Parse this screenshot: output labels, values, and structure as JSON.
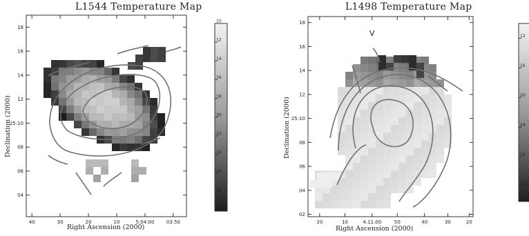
{
  "chart_data": [
    {
      "type": "heatmap",
      "title": "L1544 Temperature Map",
      "xlabel": "Right Ascension (2000)",
      "ylabel": "Declination (2000)",
      "xlim": [
        0,
        8.5
      ],
      "ylim": [
        2.2,
        19
      ],
      "x_ticks": [
        {
          "v": 0.3,
          "label": "40"
        },
        {
          "v": 1.8,
          "label": "30"
        },
        {
          "v": 3.3,
          "label": "20"
        },
        {
          "v": 4.8,
          "label": "10"
        },
        {
          "v": 6.3,
          "label": "5:04:00"
        },
        {
          "v": 7.8,
          "label": "03:50"
        }
      ],
      "y_ticks": [
        {
          "v": 4,
          "label": "04"
        },
        {
          "v": 6,
          "label": "06"
        },
        {
          "v": 8,
          "label": "08"
        },
        {
          "v": 10,
          "label": "25:10"
        },
        {
          "v": 12,
          "label": "12"
        },
        {
          "v": 14,
          "label": "14"
        },
        {
          "v": 16,
          "label": "16"
        },
        {
          "v": 18,
          "label": "18"
        }
      ],
      "colorbar": {
        "ticks": [
          "10",
          "12",
          "14",
          "16",
          "18",
          "20",
          "22",
          "24",
          "26",
          "28",
          "30"
        ]
      },
      "grid": false
    },
    {
      "type": "heatmap",
      "title": "L1498 Temperature Map",
      "xlabel": "Right Ascension (2000)",
      "ylabel": "Declination (2000)",
      "xlim": [
        0,
        8.5
      ],
      "ylim": [
        1.8,
        18.5
      ],
      "x_ticks": [
        {
          "v": 0.6,
          "label": "20"
        },
        {
          "v": 1.9,
          "label": "10"
        },
        {
          "v": 3.3,
          "label": "4:11:00"
        },
        {
          "v": 4.6,
          "label": "50"
        },
        {
          "v": 6.0,
          "label": "40"
        },
        {
          "v": 7.2,
          "label": "30"
        },
        {
          "v": 8.3,
          "label": "20"
        }
      ],
      "y_ticks": [
        {
          "v": 2,
          "label": "02"
        },
        {
          "v": 4,
          "label": "04"
        },
        {
          "v": 6,
          "label": "06"
        },
        {
          "v": 8,
          "label": "08"
        },
        {
          "v": 10,
          "label": "25:10"
        },
        {
          "v": 12,
          "label": "12"
        },
        {
          "v": 14,
          "label": "14"
        },
        {
          "v": 16,
          "label": "16"
        },
        {
          "v": 18,
          "label": "18"
        }
      ],
      "annotation": "V",
      "colorbar": {
        "ticks": [
          "12",
          "16",
          "20",
          "24",
          "28",
          "32"
        ]
      },
      "grid": false
    }
  ]
}
